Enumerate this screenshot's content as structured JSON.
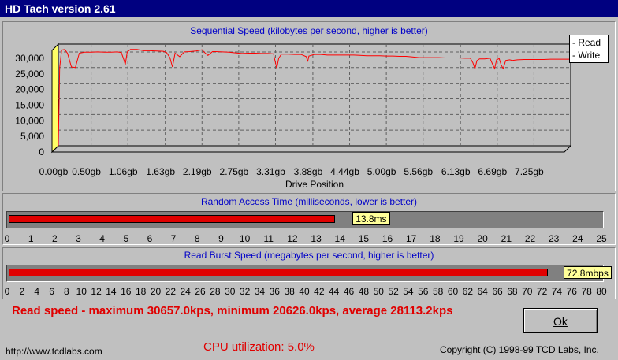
{
  "window": {
    "title": "HD Tach version 2.61"
  },
  "sequential": {
    "title": "Sequential Speed (kilobytes per second, higher is better)",
    "xlabel": "Drive Position",
    "legend": [
      "Read",
      "Write"
    ]
  },
  "random_access": {
    "title": "Random Access Time (milliseconds, lower is better)",
    "value_label": "13.8ms",
    "value": 13.8,
    "max": 25,
    "ticks": [
      "0",
      "1",
      "2",
      "3",
      "4",
      "5",
      "6",
      "7",
      "8",
      "9",
      "10",
      "11",
      "12",
      "13",
      "14",
      "15",
      "16",
      "17",
      "18",
      "19",
      "20",
      "21",
      "22",
      "23",
      "24",
      "25"
    ]
  },
  "burst": {
    "title": "Read Burst Speed (megabytes per second, higher is better)",
    "value_label": "72.8mbps",
    "value": 72.8,
    "max": 80,
    "ticks": [
      "0",
      "2",
      "4",
      "6",
      "8",
      "10",
      "12",
      "14",
      "16",
      "18",
      "20",
      "22",
      "24",
      "26",
      "28",
      "30",
      "32",
      "34",
      "36",
      "38",
      "40",
      "42",
      "44",
      "46",
      "48",
      "50",
      "52",
      "54",
      "56",
      "58",
      "60",
      "62",
      "64",
      "66",
      "68",
      "70",
      "72",
      "74",
      "76",
      "78",
      "80"
    ]
  },
  "summary": {
    "read_speed": "Read speed - maximum 30657.0kps, minimum 20626.0kps, average 28113.2kps",
    "cpu": "CPU utilization: 5.0%"
  },
  "footer": {
    "url": "http://www.tcdlabs.com",
    "copyright": "Copyright (C) 1998-99 TCD Labs, Inc."
  },
  "buttons": {
    "ok": "Ok"
  },
  "colors": {
    "read": "#ff0000",
    "accent": "#000080",
    "label_bg": "#ffff99"
  },
  "chart_data": {
    "type": "line",
    "title": "Sequential Speed (kilobytes per second, higher is better)",
    "xlabel": "Drive Position",
    "ylabel": "",
    "y_ticks": [
      "0",
      "5,000",
      "10,000",
      "15,000",
      "20,000",
      "25,000",
      "30,000"
    ],
    "x_ticks": [
      "0.00gb",
      "0.50gb",
      "1.06gb",
      "1.63gb",
      "2.19gb",
      "2.75gb",
      "3.31gb",
      "3.88gb",
      "4.44gb",
      "5.00gb",
      "5.56gb",
      "6.13gb",
      "6.69gb",
      "7.25gb"
    ],
    "ylim": [
      0,
      32000
    ],
    "xlim": [
      0,
      7.81
    ],
    "grid": true,
    "legend_position": "top-right",
    "series": [
      {
        "name": "Read",
        "points": [
          [
            0.0,
            0
          ],
          [
            0.02,
            25000
          ],
          [
            0.05,
            30600
          ],
          [
            0.1,
            30800
          ],
          [
            0.14,
            29500
          ],
          [
            0.2,
            25200
          ],
          [
            0.26,
            25000
          ],
          [
            0.32,
            29600
          ],
          [
            0.4,
            29900
          ],
          [
            0.5,
            29900
          ],
          [
            0.6,
            30000
          ],
          [
            0.7,
            29900
          ],
          [
            0.8,
            29900
          ],
          [
            0.9,
            30000
          ],
          [
            0.96,
            29800
          ],
          [
            1.0,
            27500
          ],
          [
            1.02,
            25900
          ],
          [
            1.05,
            30000
          ],
          [
            1.1,
            30800
          ],
          [
            1.2,
            30800
          ],
          [
            1.3,
            30400
          ],
          [
            1.4,
            30400
          ],
          [
            1.5,
            30300
          ],
          [
            1.6,
            30200
          ],
          [
            1.65,
            29800
          ],
          [
            1.7,
            28200
          ],
          [
            1.74,
            25200
          ],
          [
            1.78,
            29600
          ],
          [
            1.85,
            28500
          ],
          [
            1.92,
            30000
          ],
          [
            2.0,
            30100
          ],
          [
            2.1,
            30300
          ],
          [
            2.19,
            30700
          ],
          [
            2.23,
            29800
          ],
          [
            2.28,
            28900
          ],
          [
            2.35,
            30100
          ],
          [
            2.4,
            30100
          ],
          [
            2.5,
            30000
          ],
          [
            2.6,
            29900
          ],
          [
            2.7,
            29700
          ],
          [
            2.8,
            29500
          ],
          [
            2.9,
            29600
          ],
          [
            3.0,
            29600
          ],
          [
            3.1,
            29500
          ],
          [
            3.2,
            29500
          ],
          [
            3.28,
            29400
          ],
          [
            3.3,
            27500
          ],
          [
            3.33,
            24800
          ],
          [
            3.36,
            28000
          ],
          [
            3.4,
            29300
          ],
          [
            3.5,
            29300
          ],
          [
            3.6,
            29200
          ],
          [
            3.7,
            29200
          ],
          [
            3.78,
            28500
          ],
          [
            3.8,
            26900
          ],
          [
            3.82,
            28700
          ],
          [
            3.9,
            29200
          ],
          [
            4.0,
            29200
          ],
          [
            4.1,
            29000
          ],
          [
            4.2,
            29000
          ],
          [
            4.3,
            29000
          ],
          [
            4.4,
            29000
          ],
          [
            4.5,
            29000
          ],
          [
            4.6,
            28900
          ],
          [
            4.7,
            28800
          ],
          [
            4.8,
            28800
          ],
          [
            4.9,
            28800
          ],
          [
            5.0,
            28700
          ],
          [
            5.1,
            28700
          ],
          [
            5.2,
            28600
          ],
          [
            5.3,
            28600
          ],
          [
            5.4,
            28400
          ],
          [
            5.5,
            28200
          ],
          [
            5.6,
            28200
          ],
          [
            5.7,
            28200
          ],
          [
            5.8,
            28200
          ],
          [
            5.9,
            28100
          ],
          [
            6.0,
            28100
          ],
          [
            6.1,
            28100
          ],
          [
            6.2,
            28000
          ],
          [
            6.28,
            28000
          ],
          [
            6.32,
            26500
          ],
          [
            6.35,
            24600
          ],
          [
            6.38,
            27200
          ],
          [
            6.42,
            27800
          ],
          [
            6.5,
            27800
          ],
          [
            6.58,
            28000
          ],
          [
            6.62,
            26000
          ],
          [
            6.65,
            24700
          ],
          [
            6.68,
            27500
          ],
          [
            6.72,
            27900
          ],
          [
            6.75,
            25800
          ],
          [
            6.78,
            24700
          ],
          [
            6.82,
            27300
          ],
          [
            6.88,
            27500
          ],
          [
            6.92,
            27300
          ],
          [
            6.96,
            27400
          ],
          [
            7.0,
            27500
          ],
          [
            7.1,
            27600
          ],
          [
            7.2,
            27600
          ],
          [
            7.3,
            27600
          ],
          [
            7.4,
            27600
          ],
          [
            7.5,
            27700
          ],
          [
            7.6,
            27700
          ],
          [
            7.7,
            27700
          ],
          [
            7.81,
            27700
          ]
        ]
      }
    ]
  }
}
